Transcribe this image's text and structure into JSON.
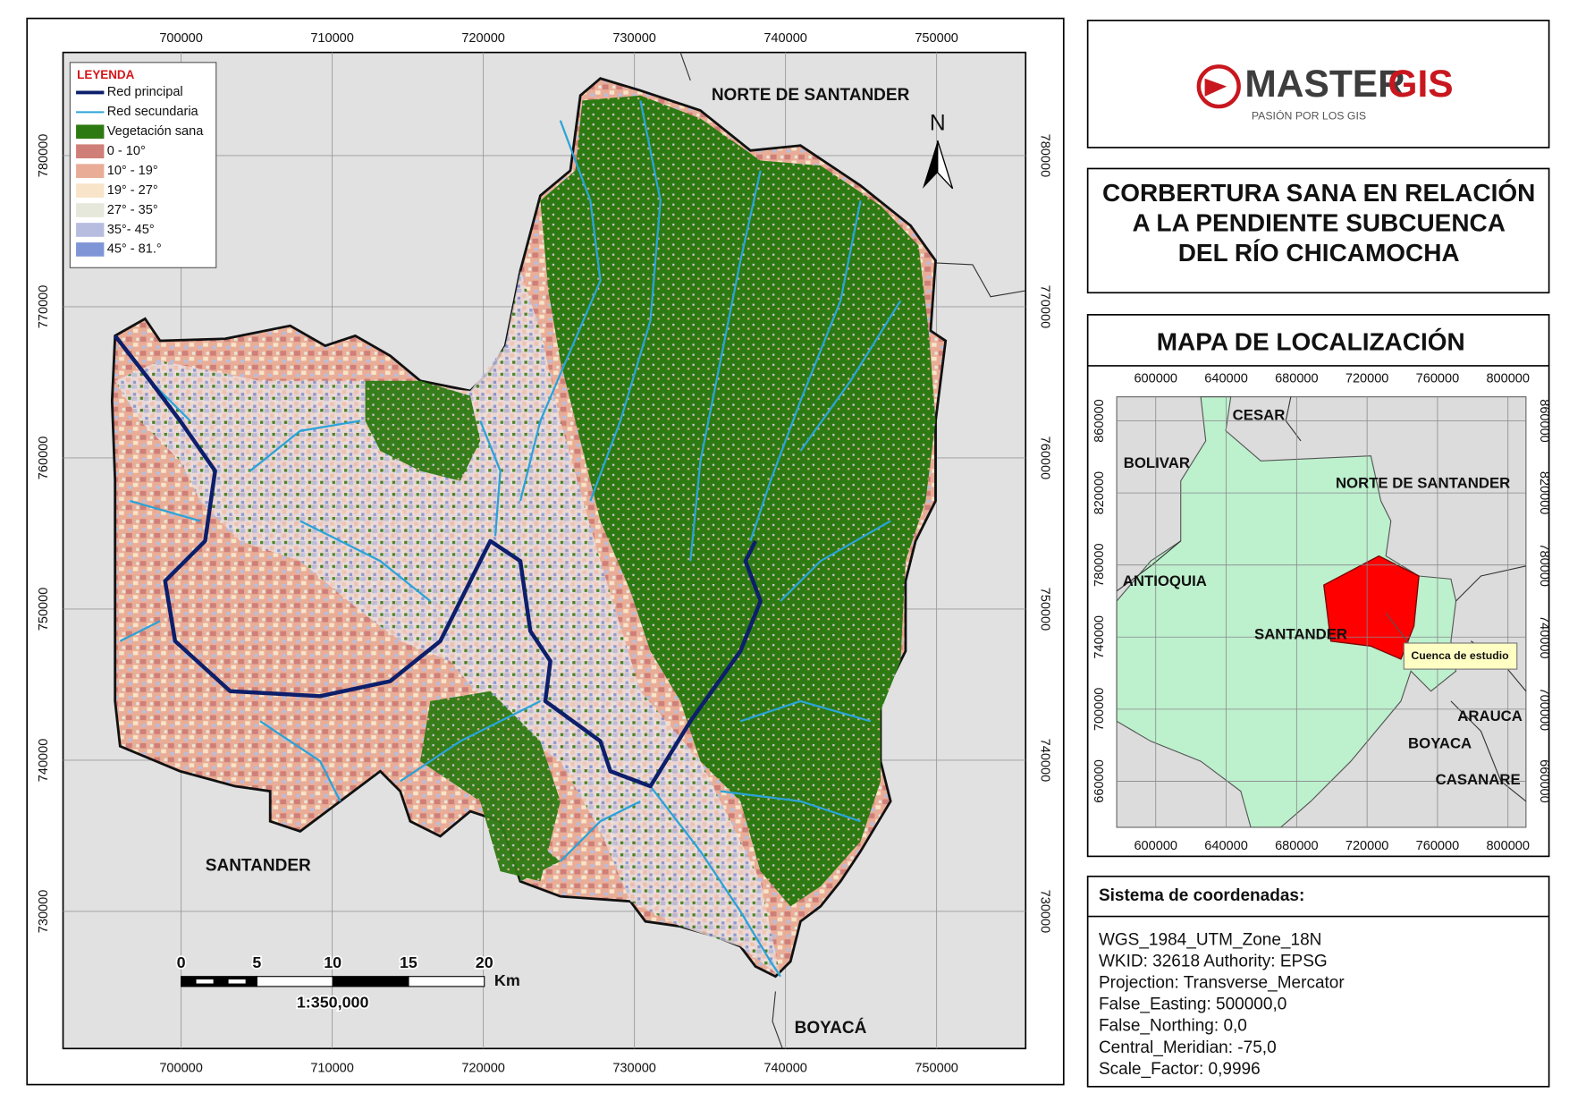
{
  "map": {
    "xticks": [
      700000,
      710000,
      720000,
      730000,
      740000,
      750000
    ],
    "yticks": [
      730000,
      740000,
      750000,
      760000,
      770000,
      780000
    ],
    "xlim": [
      692185,
      755894
    ],
    "ylim": [
      720927,
      786821
    ],
    "regions": [
      "NORTE DE SANTANDER",
      "SANTANDER",
      "BOYACÁ"
    ],
    "north": "N",
    "legend": {
      "title": "LEYENDA",
      "items": [
        {
          "label": "Red principal",
          "color": "#0d1f6b",
          "type": "line"
        },
        {
          "label": "Red secundaria",
          "color": "#2aa3d8",
          "type": "line"
        },
        {
          "label": "Vegetación sana",
          "color": "#2e7a12",
          "type": "patch"
        },
        {
          "label": "0 - 10°",
          "color": "#cf7f78",
          "type": "patch"
        },
        {
          "label": "10° - 19°",
          "color": "#e9ad97",
          "type": "patch"
        },
        {
          "label": "19° - 27°",
          "color": "#f8e4c8",
          "type": "patch"
        },
        {
          "label": "27° - 35°",
          "color": "#e6e8dc",
          "type": "patch"
        },
        {
          "label": "35°- 45°",
          "color": "#b7bddf",
          "type": "patch"
        },
        {
          "label": "45° - 81.°",
          "color": "#7f95d6",
          "type": "patch"
        }
      ]
    },
    "scale_bar": {
      "ticks": [
        0,
        5,
        10,
        15,
        20
      ],
      "unit": "Km",
      "ratio": "1:350,000"
    }
  },
  "logo": {
    "brand_a": "MASTER",
    "brand_b": "GIS",
    "tagline": "PASIÓN POR LOS GIS"
  },
  "title": [
    "CORBERTURA SANA EN RELACIÓN",
    "A LA PENDIENTE SUBCUENCA",
    "DEL RÍO CHICAMOCHA"
  ],
  "location_map": {
    "title": "MAPA DE LOCALIZACIÓN",
    "xticks": [
      600000,
      640000,
      680000,
      720000,
      760000,
      800000
    ],
    "yticks": [
      660000,
      700000,
      740000,
      780000,
      820000,
      860000
    ],
    "xlim": [
      577841,
      810227
    ],
    "ylim": [
      634444,
      873333
    ],
    "regions": [
      "CESAR",
      "BOLIVAR",
      "NORTE DE SANTANDER",
      "ANTIOQUIA",
      "SANTANDER",
      "ARAUCA",
      "BOYACA",
      "CASANARE"
    ],
    "callout": "Cuenca de estudio"
  },
  "coordinate_system": {
    "title": "Sistema de coordenadas:",
    "lines": [
      "WGS_1984_UTM_Zone_18N",
      "WKID: 32618 Authority: EPSG",
      "Projection: Transverse_Mercator",
      "False_Easting: 500000,0",
      "False_Northing: 0,0",
      "Central_Meridian: -75,0",
      "Scale_Factor: 0,9996"
    ]
  }
}
